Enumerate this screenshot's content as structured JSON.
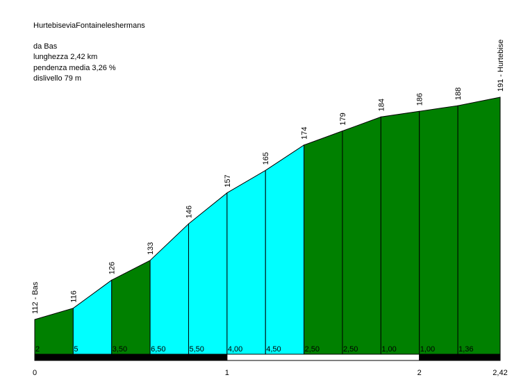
{
  "chart_data": {
    "type": "area",
    "title": "HurtebiseviaFontaineleshermans",
    "info": {
      "start": "da Bas",
      "length": "lunghezza 2,42 km",
      "avg_gradient": "pendenza media 3,26 %",
      "climb": "dislivello 79 m"
    },
    "x_km": [
      0,
      0.2,
      0.4,
      0.6,
      0.8,
      1.0,
      1.2,
      1.4,
      1.6,
      1.8,
      2.0,
      2.2,
      2.42
    ],
    "elevation_labels": [
      "112 - Bas",
      "116",
      "126",
      "133",
      "146",
      "157",
      "165",
      "174",
      "179",
      "184",
      "186",
      "188",
      "191 - Hurtebise"
    ],
    "elevations": [
      112,
      116,
      126,
      133,
      146,
      157,
      165,
      174,
      179,
      184,
      186,
      188,
      191
    ],
    "gradient_labels": [
      "2",
      "5",
      "3,50",
      "6,50",
      "5,50",
      "4,00",
      "4,50",
      "2,50",
      "2,50",
      "1,00",
      "1,00",
      "1,36"
    ],
    "segment_colors": [
      "#008000",
      "#00ffff",
      "#008000",
      "#00ffff",
      "#00ffff",
      "#00ffff",
      "#00ffff",
      "#008000",
      "#008000",
      "#008000",
      "#008000",
      "#008000"
    ],
    "x_tick_labels": [
      "0",
      "1",
      "2",
      "2,42"
    ],
    "x_ticks_km": [
      0,
      1,
      2,
      2.42
    ]
  }
}
